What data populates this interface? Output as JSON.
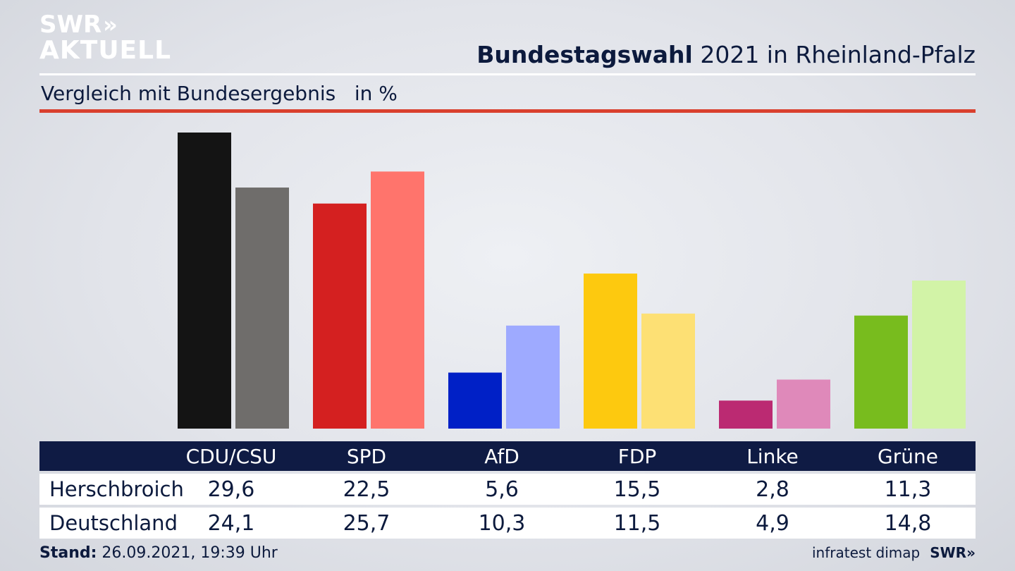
{
  "brand": {
    "logo_line1": "SWR",
    "logo_chevrons": "»",
    "logo_line2": "AKTUELL"
  },
  "header": {
    "title_bold": "Bundestagswahl",
    "title_rest": " 2021 in Rheinland-Pfalz",
    "subtitle": "Vergleich mit Bundesergebnis   in %"
  },
  "colors": {
    "accent_rule": "#d9402e",
    "table_header_bg": "#0f1b44",
    "text": "#0c1a3d"
  },
  "chart_data": {
    "type": "bar",
    "categories": [
      "CDU/CSU",
      "SPD",
      "AfD",
      "FDP",
      "Linke",
      "Grüne"
    ],
    "series": [
      {
        "name": "Herschbroich",
        "values": [
          29.6,
          22.5,
          5.6,
          15.5,
          2.8,
          11.3
        ],
        "colors": [
          "#141414",
          "#d42020",
          "#0020c6",
          "#fdc90f",
          "#bb2a72",
          "#78bc1e"
        ]
      },
      {
        "name": "Deutschland",
        "values": [
          24.1,
          25.7,
          10.3,
          11.5,
          4.9,
          14.8
        ],
        "colors": [
          "#6f6d6b",
          "#ff746c",
          "#9eaaff",
          "#fde074",
          "#df89ba",
          "#d2f3a7"
        ]
      }
    ],
    "ylim": [
      0,
      29.6
    ],
    "grid": false,
    "legend": "table below chart"
  },
  "table": {
    "headers": [
      "CDU/CSU",
      "SPD",
      "AfD",
      "FDP",
      "Linke",
      "Grüne"
    ],
    "rows": [
      {
        "label": "Herschbroich",
        "values": [
          "29,6",
          "22,5",
          "5,6",
          "15,5",
          "2,8",
          "11,3"
        ]
      },
      {
        "label": "Deutschland",
        "values": [
          "24,1",
          "25,7",
          "10,3",
          "11,5",
          "4,9",
          "14,8"
        ]
      }
    ]
  },
  "footer": {
    "stand_label": "Stand:",
    "stand_value": " 26.09.2021, 19:39 Uhr",
    "source": "infratest dimap",
    "brand": "SWR»"
  }
}
